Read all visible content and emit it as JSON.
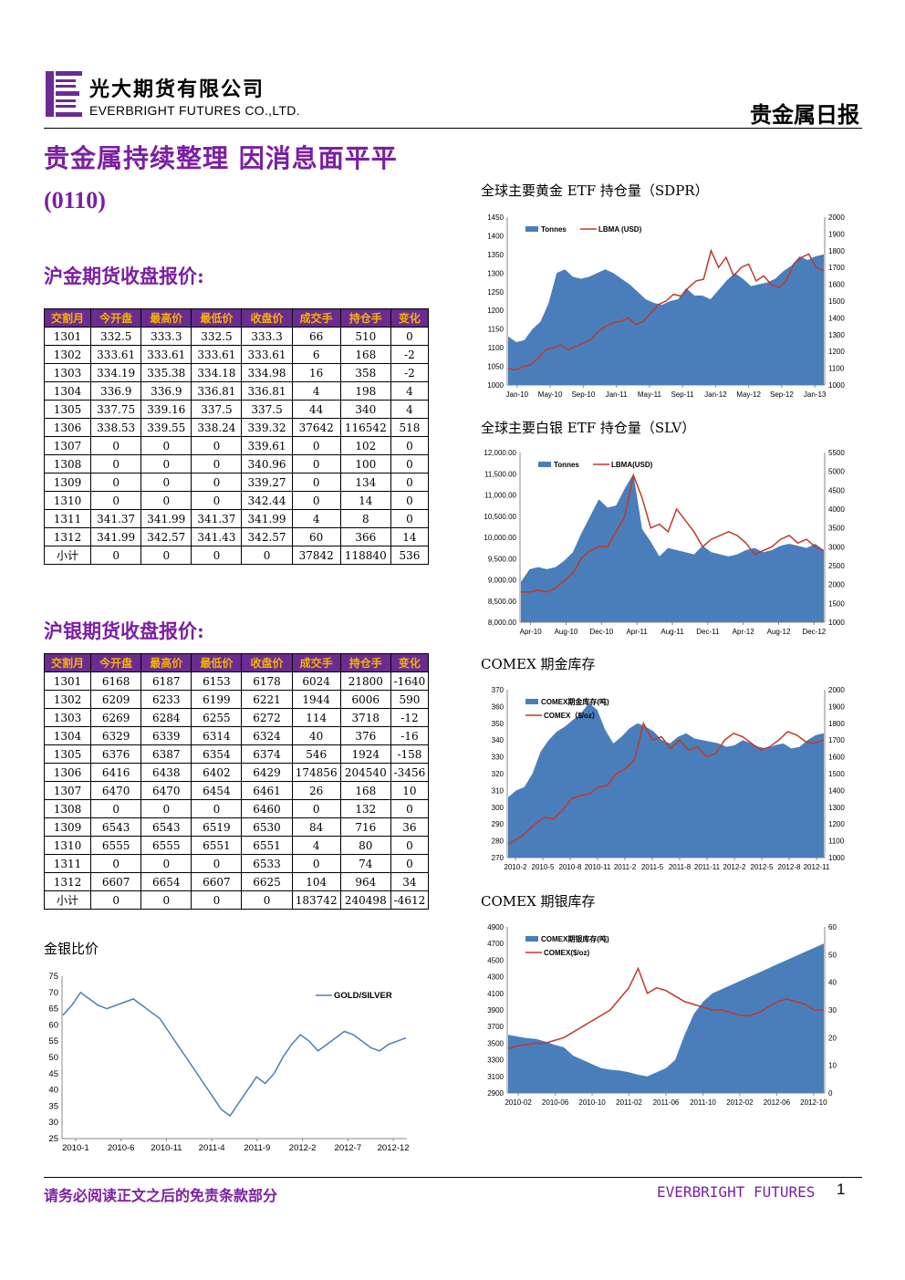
{
  "header": {
    "company_cn": "光大期货有限公司",
    "company_en": "EVERBRIGHT FUTURES CO.,LTD.",
    "report_type": "贵金属日报",
    "brand_color": "#6b2c91"
  },
  "title": {
    "main": "贵金属持续整理 因消息面平平",
    "date": "(0110)"
  },
  "gold_futures": {
    "section_title": "沪金期货收盘报价:",
    "headers": [
      "交割月",
      "今开盘",
      "最高价",
      "最低价",
      "收盘价",
      "成交手",
      "持仓手",
      "变化"
    ],
    "rows": [
      [
        "1301",
        "332.5",
        "333.3",
        "332.5",
        "333.3",
        "66",
        "510",
        "0"
      ],
      [
        "1302",
        "333.61",
        "333.61",
        "333.61",
        "333.61",
        "6",
        "168",
        "-2"
      ],
      [
        "1303",
        "334.19",
        "335.38",
        "334.18",
        "334.98",
        "16",
        "358",
        "-2"
      ],
      [
        "1304",
        "336.9",
        "336.9",
        "336.81",
        "336.81",
        "4",
        "198",
        "4"
      ],
      [
        "1305",
        "337.75",
        "339.16",
        "337.5",
        "337.5",
        "44",
        "340",
        "4"
      ],
      [
        "1306",
        "338.53",
        "339.55",
        "338.24",
        "339.32",
        "37642",
        "116542",
        "518"
      ],
      [
        "1307",
        "0",
        "0",
        "0",
        "339.61",
        "0",
        "102",
        "0"
      ],
      [
        "1308",
        "0",
        "0",
        "0",
        "340.96",
        "0",
        "100",
        "0"
      ],
      [
        "1309",
        "0",
        "0",
        "0",
        "339.27",
        "0",
        "134",
        "0"
      ],
      [
        "1310",
        "0",
        "0",
        "0",
        "342.44",
        "0",
        "14",
        "0"
      ],
      [
        "1311",
        "341.37",
        "341.99",
        "341.37",
        "341.99",
        "4",
        "8",
        "0"
      ],
      [
        "1312",
        "341.99",
        "342.57",
        "341.43",
        "342.57",
        "60",
        "366",
        "14"
      ],
      [
        "小计",
        "0",
        "0",
        "0",
        "0",
        "37842",
        "118840",
        "536"
      ]
    ]
  },
  "silver_futures": {
    "section_title": "沪银期货收盘报价:",
    "headers": [
      "交割月",
      "今开盘",
      "最高价",
      "最低价",
      "收盘价",
      "成交手",
      "持仓手",
      "变化"
    ],
    "rows": [
      [
        "1301",
        "6168",
        "6187",
        "6153",
        "6178",
        "6024",
        "21800",
        "-1640"
      ],
      [
        "1302",
        "6209",
        "6233",
        "6199",
        "6221",
        "1944",
        "6006",
        "590"
      ],
      [
        "1303",
        "6269",
        "6284",
        "6255",
        "6272",
        "114",
        "3718",
        "-12"
      ],
      [
        "1304",
        "6329",
        "6339",
        "6314",
        "6324",
        "40",
        "376",
        "-16"
      ],
      [
        "1305",
        "6376",
        "6387",
        "6354",
        "6374",
        "546",
        "1924",
        "-158"
      ],
      [
        "1306",
        "6416",
        "6438",
        "6402",
        "6429",
        "174856",
        "204540",
        "-3456"
      ],
      [
        "1307",
        "6470",
        "6470",
        "6454",
        "6461",
        "26",
        "168",
        "10"
      ],
      [
        "1308",
        "0",
        "0",
        "0",
        "6460",
        "0",
        "132",
        "0"
      ],
      [
        "1309",
        "6543",
        "6543",
        "6519",
        "6530",
        "84",
        "716",
        "36"
      ],
      [
        "1310",
        "6555",
        "6555",
        "6551",
        "6551",
        "4",
        "80",
        "0"
      ],
      [
        "1311",
        "0",
        "0",
        "0",
        "6533",
        "0",
        "74",
        "0"
      ],
      [
        "1312",
        "6607",
        "6654",
        "6607",
        "6625",
        "104",
        "964",
        "34"
      ],
      [
        "小计",
        "0",
        "0",
        "0",
        "0",
        "183742",
        "240498",
        "-4612"
      ]
    ]
  },
  "chart_data": [
    {
      "id": "sdpr",
      "type": "area",
      "title": "全球主要黄金 ETF 持仓量（SDPR）",
      "x_ticks": [
        "Jan-10",
        "May-10",
        "Sep-10",
        "Jan-11",
        "May-11",
        "Sep-11",
        "Jan-12",
        "May-12",
        "Sep-12",
        "Jan-13"
      ],
      "ylim": [
        1000,
        1450
      ],
      "yticks": [
        1000,
        1050,
        1100,
        1150,
        1200,
        1250,
        1300,
        1350,
        1400,
        1450
      ],
      "y2lim": [
        1000,
        2000
      ],
      "y2ticks": [
        1000,
        1100,
        1200,
        1300,
        1400,
        1500,
        1600,
        1700,
        1800,
        1900,
        2000
      ],
      "y_decimals": 0,
      "series": [
        {
          "name": "Tonnes",
          "kind": "area",
          "axis": "left",
          "color": "#4a7ebb",
          "values": [
            1130,
            1115,
            1120,
            1150,
            1170,
            1220,
            1300,
            1310,
            1290,
            1285,
            1290,
            1300,
            1310,
            1300,
            1285,
            1270,
            1250,
            1230,
            1220,
            1215,
            1225,
            1230,
            1260,
            1240,
            1240,
            1230,
            1255,
            1280,
            1300,
            1285,
            1265,
            1270,
            1275,
            1285,
            1305,
            1320,
            1345,
            1335,
            1345,
            1350
          ]
        },
        {
          "name": "LBMA (USD)",
          "kind": "line",
          "axis": "right",
          "color": "#c0392b",
          "values": [
            1100,
            1090,
            1110,
            1120,
            1160,
            1210,
            1220,
            1240,
            1210,
            1230,
            1250,
            1270,
            1320,
            1350,
            1370,
            1380,
            1400,
            1360,
            1380,
            1430,
            1480,
            1500,
            1540,
            1530,
            1580,
            1620,
            1630,
            1800,
            1700,
            1760,
            1650,
            1700,
            1720,
            1620,
            1650,
            1600,
            1580,
            1620,
            1720,
            1760,
            1780,
            1700,
            1680
          ]
        }
      ],
      "legend": "top-left"
    },
    {
      "id": "slv",
      "type": "area",
      "title": "全球主要白银 ETF 持仓量（SLV）",
      "x_ticks": [
        "Apr-10",
        "Aug-10",
        "Dec-10",
        "Apr-11",
        "Aug-11",
        "Dec-11",
        "Apr-12",
        "Aug-12",
        "Dec-12"
      ],
      "ylim": [
        8000,
        12000
      ],
      "yticks": [
        8000,
        8500,
        9000,
        9500,
        10000,
        10500,
        11000,
        11500,
        12000
      ],
      "y2lim": [
        1000,
        5500
      ],
      "y2ticks": [
        1000,
        1500,
        2000,
        2500,
        3000,
        3500,
        4000,
        4500,
        5000,
        5500
      ],
      "y_decimals": 2,
      "series": [
        {
          "name": "Tonnes",
          "kind": "area",
          "axis": "left",
          "color": "#4a7ebb",
          "values": [
            8950,
            9250,
            9300,
            9250,
            9300,
            9450,
            9650,
            10100,
            10500,
            10900,
            10700,
            10750,
            11150,
            11500,
            10200,
            9900,
            9550,
            9750,
            9700,
            9650,
            9600,
            9800,
            9650,
            9600,
            9550,
            9600,
            9700,
            9750,
            9650,
            9700,
            9800,
            9850,
            9800,
            9750,
            9850,
            9700
          ]
        },
        {
          "name": "LBMA(USD)",
          "kind": "line",
          "axis": "right",
          "color": "#c0392b",
          "values": [
            1800,
            1800,
            1850,
            1800,
            1900,
            2100,
            2300,
            2700,
            2900,
            3000,
            3000,
            3400,
            3800,
            4900,
            4300,
            3500,
            3600,
            3400,
            4000,
            3700,
            3400,
            3000,
            3200,
            3300,
            3400,
            3300,
            3100,
            2800,
            2900,
            3000,
            3200,
            3300,
            3100,
            3200,
            3000,
            2900
          ]
        }
      ],
      "legend": "top-left"
    },
    {
      "id": "comex_gold",
      "type": "area",
      "title": "COMEX 期金库存",
      "x_ticks": [
        "2010-2",
        "2010-5",
        "2010-8",
        "2010-11",
        "2011-2",
        "2011-5",
        "2011-8",
        "2011-11",
        "2012-2",
        "2012-5",
        "2012-8",
        "2012-11"
      ],
      "ylim": [
        270,
        370
      ],
      "yticks": [
        270,
        280,
        290,
        300,
        310,
        320,
        330,
        340,
        350,
        360,
        370
      ],
      "y2lim": [
        1000,
        2000
      ],
      "y2ticks": [
        1000,
        1100,
        1200,
        1300,
        1400,
        1500,
        1600,
        1700,
        1800,
        1900,
        2000
      ],
      "y_decimals": 0,
      "series": [
        {
          "name": "COMEX期金库存(吨)",
          "kind": "area",
          "axis": "left",
          "color": "#4a7ebb",
          "values": [
            306,
            310,
            312,
            320,
            333,
            340,
            345,
            348,
            352,
            356,
            362,
            358,
            346,
            338,
            342,
            347,
            350,
            348,
            345,
            340,
            338,
            342,
            344,
            341,
            340,
            339,
            338,
            336,
            337,
            340,
            338,
            336,
            335,
            337,
            338,
            335,
            336,
            340,
            343,
            344
          ]
        },
        {
          "name": "COMEX（$/oz）",
          "kind": "line",
          "axis": "right",
          "color": "#c0392b",
          "values": [
            1080,
            1110,
            1150,
            1200,
            1240,
            1230,
            1280,
            1350,
            1370,
            1380,
            1420,
            1430,
            1500,
            1530,
            1580,
            1800,
            1700,
            1720,
            1650,
            1700,
            1640,
            1660,
            1600,
            1620,
            1700,
            1740,
            1720,
            1680,
            1640,
            1660,
            1700,
            1750,
            1730,
            1690,
            1680,
            1700
          ]
        }
      ],
      "legend": "top-left"
    },
    {
      "id": "comex_silver",
      "type": "area",
      "title": "COMEX 期银库存",
      "x_ticks": [
        "2010-02",
        "2010-06",
        "2010-10",
        "2011-02",
        "2011-06",
        "2011-10",
        "2012-02",
        "2012-06",
        "2012-10"
      ],
      "ylim": [
        2900,
        4900
      ],
      "yticks": [
        2900,
        3100,
        3300,
        3500,
        3700,
        3900,
        4100,
        4300,
        4500,
        4700,
        4900
      ],
      "y2lim": [
        0,
        60
      ],
      "y2ticks": [
        0,
        10,
        20,
        30,
        40,
        50,
        60
      ],
      "y_decimals": 0,
      "series": [
        {
          "name": "COMEX期银库存(吨)",
          "kind": "area",
          "axis": "left",
          "color": "#4a7ebb",
          "values": [
            3600,
            3580,
            3560,
            3550,
            3520,
            3480,
            3450,
            3350,
            3300,
            3250,
            3200,
            3180,
            3170,
            3150,
            3120,
            3100,
            3150,
            3200,
            3300,
            3600,
            3850,
            4000,
            4100,
            4150,
            4200,
            4250,
            4300,
            4350,
            4400,
            4450,
            4500,
            4550,
            4600,
            4650,
            4700
          ]
        },
        {
          "name": "COMEX($/oz)",
          "kind": "line",
          "axis": "right",
          "color": "#c0392b",
          "values": [
            16,
            17,
            17.5,
            18,
            18,
            19,
            20,
            22,
            24,
            26,
            28,
            30,
            34,
            38,
            45,
            36,
            38,
            37,
            35,
            33,
            32,
            31,
            30,
            30,
            29,
            28,
            28,
            29,
            31,
            33,
            34,
            33,
            32,
            30,
            30
          ]
        }
      ],
      "legend": "top-left"
    },
    {
      "id": "gold_silver_ratio",
      "type": "line",
      "title": "金银比价",
      "x_ticks": [
        "2010-1",
        "2010-6",
        "2010-11",
        "2011-4",
        "2011-9",
        "2012-2",
        "2012-7",
        "2012-12"
      ],
      "ylim": [
        25,
        75
      ],
      "yticks": [
        25,
        30,
        35,
        40,
        45,
        50,
        55,
        60,
        65,
        70,
        75
      ],
      "y_decimals": 0,
      "series": [
        {
          "name": "GOLD/SILVER",
          "kind": "line",
          "axis": "left",
          "color": "#4a7ebb",
          "values": [
            63,
            66,
            70,
            68,
            66,
            65,
            66,
            67,
            68,
            66,
            64,
            62,
            58,
            54,
            50,
            46,
            42,
            38,
            34,
            32,
            36,
            40,
            44,
            42,
            45,
            50,
            54,
            57,
            55,
            52,
            54,
            56,
            58,
            57,
            55,
            53,
            52,
            54,
            55,
            56
          ]
        }
      ],
      "legend": "top-right"
    }
  ],
  "footer": {
    "disclaimer": "请务必阅读正文之后的免责条款部分",
    "brand": "EVERBRIGHT FUTURES",
    "page_number": "1"
  }
}
